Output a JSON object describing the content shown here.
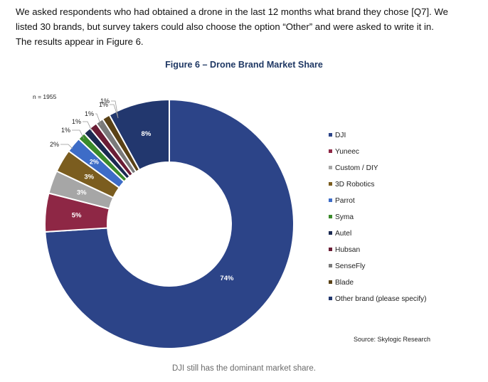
{
  "intro": {
    "line1": "We asked respondents who had obtained a drone in the last 12 months what brand they chose [Q7]. We",
    "line2": "listed 30 brands, but survey takers could also choose the option “Other” and were asked to write it in.",
    "line3": "The results appear in Figure 6."
  },
  "caption": "DJI still has the dominant market share.",
  "chart_data": {
    "type": "donut",
    "title": "Figure 6 – Drone Brand Market Share",
    "note": "n = 1955",
    "source": "Source: Skylogic Research",
    "legend_position": "right",
    "slices": [
      {
        "name": "DJI",
        "value": 74,
        "label": "74%",
        "color": "#2c4488"
      },
      {
        "name": "Yuneec",
        "value": 5,
        "label": "5%",
        "color": "#8e2745"
      },
      {
        "name": "Custom / DIY",
        "value": 3,
        "label": "3%",
        "color": "#a6a6a6"
      },
      {
        "name": "3D Robotics",
        "value": 3,
        "label": "3%",
        "color": "#7b5d1f"
      },
      {
        "name": "Parrot",
        "value": 2,
        "label": "2%",
        "color": "#3d6cc7"
      },
      {
        "name": "Syma",
        "value": 1,
        "label": "1%",
        "color": "#3a8a2a"
      },
      {
        "name": "Autel",
        "value": 1,
        "label": "1%",
        "color": "#1b2a52"
      },
      {
        "name": "Hubsan",
        "value": 1,
        "label": "1%",
        "color": "#6a1d35"
      },
      {
        "name": "SenseFly",
        "value": 1,
        "label": "1%",
        "color": "#7a7a7a"
      },
      {
        "name": "Blade",
        "value": 1,
        "label": "1%",
        "color": "#5a4216"
      },
      {
        "name": "Other brand (please specify)",
        "value": 8,
        "label": "8%",
        "color": "#22376e"
      }
    ]
  }
}
